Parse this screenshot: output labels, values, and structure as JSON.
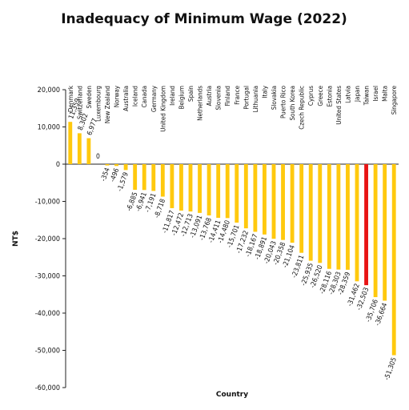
{
  "chart_data": {
    "type": "bar",
    "title": "Inadequacy of Minimum Wage (2022)",
    "xlabel": "Country",
    "ylabel": "NT$",
    "ylim": [
      -60000,
      20000
    ],
    "yticks": [
      20000,
      10000,
      0,
      -10000,
      -20000,
      -30000,
      -40000,
      -50000,
      -60000
    ],
    "ytick_labels": [
      "20,000",
      "10,000",
      "0",
      "-10,000",
      "-20,000",
      "-30,000",
      "-40,000",
      "-50,000",
      "-60,000"
    ],
    "grid": false,
    "categories": [
      "Denmark",
      "Switzerland",
      "Sweden",
      "Luxembourg",
      "New Zealand",
      "Norway",
      "Australia",
      "Iceland",
      "Canada",
      "Germany",
      "United Kingdom",
      "Ireland",
      "Belgium",
      "Spain",
      "Netherlands",
      "Austria",
      "Slovenia",
      "Finland",
      "France",
      "Portugal",
      "Lithuania",
      "Italy",
      "Slovakia",
      "Puerto Rico",
      "South Korea",
      "Czech Republic",
      "Cyprus",
      "Greece",
      "Estonia",
      "United States",
      "Latvia",
      "Japan",
      "Taiwan",
      "Israel",
      "Malta",
      "Singapore"
    ],
    "values": [
      11359,
      8302,
      6977,
      0,
      -354,
      -496,
      -1579,
      -6885,
      -6941,
      -7191,
      -8718,
      -11817,
      -12472,
      -12713,
      -13091,
      -13768,
      -14411,
      -14480,
      -15701,
      -17232,
      -18167,
      -18891,
      -20043,
      -20358,
      -21104,
      -23811,
      -25935,
      -26520,
      -28116,
      -28303,
      -28359,
      -31462,
      -32503,
      -35706,
      -36664,
      -51305
    ],
    "value_labels": [
      "11,359",
      "8,302",
      "6,977",
      "0",
      "-354",
      "-496",
      "-1,579",
      "-6,885",
      "-6,941",
      "-7,191",
      "-8,718",
      "-11,817",
      "-12,472",
      "-12,713",
      "-13,091",
      "-13,768",
      "-14,411",
      "-14,480",
      "-15,701",
      "-17,232",
      "-18,167",
      "-18,891",
      "-20,043",
      "-20,358",
      "-21,104",
      "-23,811",
      "-25,935",
      "-26,520",
      "-28,116",
      "-28,303",
      "-28,359",
      "-31,462",
      "-32,503",
      "-35,706",
      "-36,664",
      "-51,305"
    ],
    "bar_color": "#FFC90E",
    "highlight_color": "#E81414",
    "highlight_category": "Taiwan"
  }
}
